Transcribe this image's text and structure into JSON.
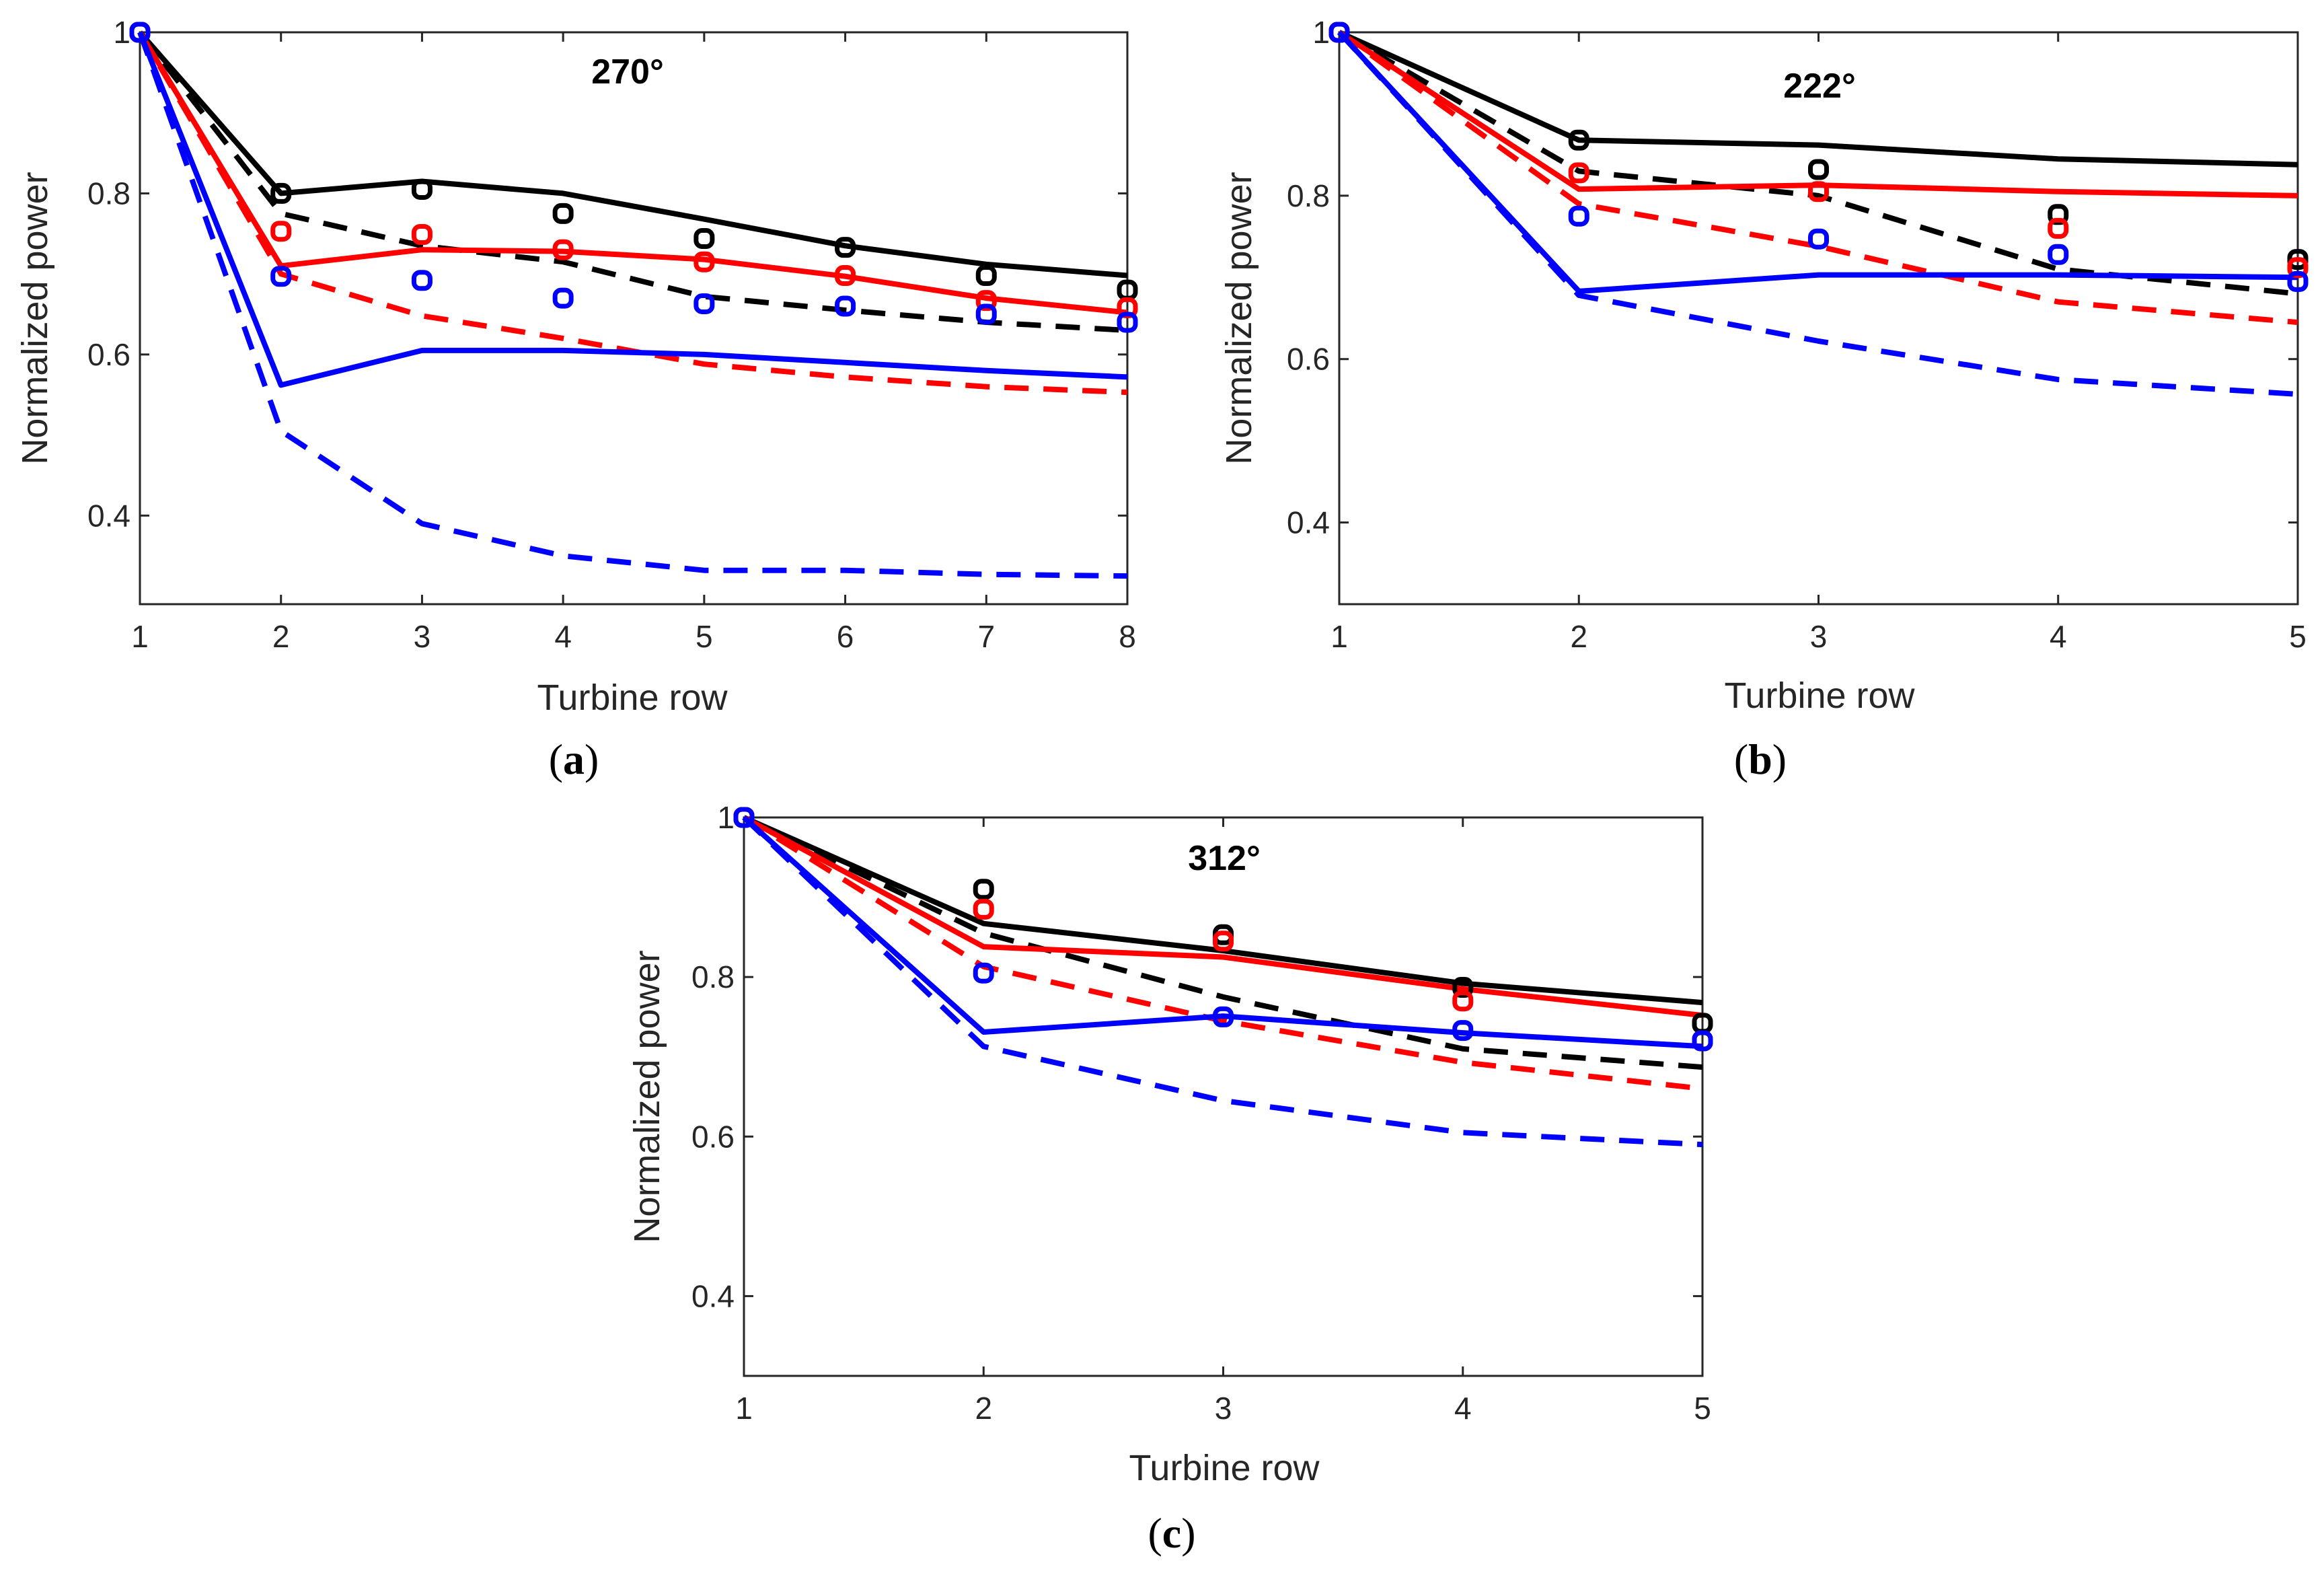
{
  "colors": {
    "exp": "#000000",
    "red": "#ff0000",
    "blue": "#0000ff"
  },
  "chart_data": [
    {
      "type": "line",
      "id": "a",
      "caption_open": "(",
      "caption_letter": "a",
      "caption_close": ")",
      "title": "270°",
      "xlabel": "Turbine row",
      "ylabel": "Normalized power",
      "xlim": [
        1,
        8
      ],
      "ylim": [
        0.29,
        1.0
      ],
      "xticks": [
        1,
        2,
        3,
        4,
        5,
        6,
        7,
        8
      ],
      "yticks": [
        0.4,
        0.6,
        0.8,
        1
      ],
      "ytick_labels": [
        "0.4",
        "0.6",
        "0.8",
        "1"
      ],
      "x": [
        1,
        2,
        3,
        4,
        5,
        6,
        7,
        8
      ],
      "series": [
        {
          "name": "black-solid",
          "color": "#000000",
          "style": "solid",
          "values": [
            1.0,
            0.8,
            0.815,
            0.8,
            0.768,
            0.735,
            0.712,
            0.698
          ]
        },
        {
          "name": "black-dashed",
          "color": "#000000",
          "style": "dashed",
          "values": [
            1.0,
            0.775,
            0.735,
            0.715,
            0.672,
            0.655,
            0.64,
            0.63
          ]
        },
        {
          "name": "red-solid",
          "color": "#ff0000",
          "style": "solid",
          "values": [
            1.0,
            0.71,
            0.73,
            0.728,
            0.718,
            0.697,
            0.67,
            0.652
          ]
        },
        {
          "name": "red-dashed",
          "color": "#ff0000",
          "style": "dashed",
          "values": [
            1.0,
            0.7,
            0.648,
            0.62,
            0.588,
            0.572,
            0.56,
            0.553
          ]
        },
        {
          "name": "blue-solid",
          "color": "#0000ff",
          "style": "solid",
          "values": [
            1.0,
            0.562,
            0.605,
            0.605,
            0.6,
            0.59,
            0.58,
            0.572
          ]
        },
        {
          "name": "blue-dashed",
          "color": "#0000ff",
          "style": "dashed",
          "values": [
            1.0,
            0.505,
            0.39,
            0.35,
            0.332,
            0.332,
            0.327,
            0.325
          ]
        },
        {
          "name": "black-markers",
          "color": "#000000",
          "style": "markers",
          "values": [
            1.0,
            0.8,
            0.805,
            0.775,
            0.744,
            0.733,
            0.698,
            0.68
          ]
        },
        {
          "name": "red-markers",
          "color": "#ff0000",
          "style": "markers",
          "values": [
            1.0,
            0.753,
            0.749,
            0.73,
            0.715,
            0.698,
            0.667,
            0.658
          ]
        },
        {
          "name": "blue-markers",
          "color": "#0000ff",
          "style": "markers",
          "values": [
            1.0,
            0.697,
            0.692,
            0.67,
            0.663,
            0.66,
            0.65,
            0.64
          ]
        }
      ]
    },
    {
      "type": "line",
      "id": "b",
      "caption_open": "(",
      "caption_letter": "b",
      "caption_close": ")",
      "title": "222°",
      "xlabel": "Turbine row",
      "ylabel": "Normalized power",
      "xlim": [
        1,
        5
      ],
      "ylim": [
        0.3,
        1.0
      ],
      "xticks": [
        1,
        2,
        3,
        4,
        5
      ],
      "yticks": [
        0.4,
        0.6,
        0.8,
        1
      ],
      "ytick_labels": [
        "0.4",
        "0.6",
        "0.8",
        "1"
      ],
      "x": [
        1,
        2,
        3,
        4,
        5
      ],
      "series": [
        {
          "name": "black-solid",
          "color": "#000000",
          "style": "solid",
          "values": [
            1.0,
            0.868,
            0.862,
            0.845,
            0.838
          ]
        },
        {
          "name": "black-dashed",
          "color": "#000000",
          "style": "dashed",
          "values": [
            1.0,
            0.83,
            0.8,
            0.71,
            0.68
          ]
        },
        {
          "name": "red-solid",
          "color": "#ff0000",
          "style": "solid",
          "values": [
            1.0,
            0.808,
            0.813,
            0.805,
            0.8
          ]
        },
        {
          "name": "red-dashed",
          "color": "#ff0000",
          "style": "dashed",
          "values": [
            1.0,
            0.79,
            0.738,
            0.67,
            0.645
          ]
        },
        {
          "name": "blue-solid",
          "color": "#0000ff",
          "style": "solid",
          "values": [
            1.0,
            0.683,
            0.703,
            0.703,
            0.7
          ]
        },
        {
          "name": "blue-dashed",
          "color": "#0000ff",
          "style": "dashed",
          "values": [
            1.0,
            0.678,
            0.622,
            0.575,
            0.557
          ]
        },
        {
          "name": "black-markers",
          "color": "#000000",
          "style": "markers",
          "values": [
            1.0,
            0.868,
            0.832,
            0.777,
            0.722
          ]
        },
        {
          "name": "red-markers",
          "color": "#ff0000",
          "style": "markers",
          "values": [
            1.0,
            0.828,
            0.805,
            0.76,
            0.712
          ]
        },
        {
          "name": "blue-markers",
          "color": "#0000ff",
          "style": "markers",
          "values": [
            1.0,
            0.775,
            0.747,
            0.728,
            0.695
          ]
        }
      ]
    },
    {
      "type": "line",
      "id": "c",
      "caption_open": "(",
      "caption_letter": "c",
      "caption_close": ")",
      "title": "312°",
      "xlabel": "Turbine row",
      "ylabel": "Normalized power",
      "xlim": [
        1,
        5
      ],
      "ylim": [
        0.3,
        1.0
      ],
      "xticks": [
        1,
        2,
        3,
        4,
        5
      ],
      "yticks": [
        0.4,
        0.6,
        0.8,
        1
      ],
      "ytick_labels": [
        "0.4",
        "0.6",
        "0.8",
        "1"
      ],
      "x": [
        1,
        2,
        3,
        4,
        5
      ],
      "series": [
        {
          "name": "black-solid",
          "color": "#000000",
          "style": "solid",
          "values": [
            1.0,
            0.867,
            0.833,
            0.792,
            0.768
          ]
        },
        {
          "name": "black-dashed",
          "color": "#000000",
          "style": "dashed",
          "values": [
            1.0,
            0.855,
            0.775,
            0.71,
            0.687
          ]
        },
        {
          "name": "red-solid",
          "color": "#ff0000",
          "style": "solid",
          "values": [
            1.0,
            0.838,
            0.825,
            0.785,
            0.752
          ]
        },
        {
          "name": "red-dashed",
          "color": "#ff0000",
          "style": "dashed",
          "values": [
            1.0,
            0.813,
            0.745,
            0.693,
            0.66
          ]
        },
        {
          "name": "blue-solid",
          "color": "#0000ff",
          "style": "solid",
          "values": [
            1.0,
            0.731,
            0.751,
            0.73,
            0.713
          ]
        },
        {
          "name": "blue-dashed",
          "color": "#0000ff",
          "style": "dashed",
          "values": [
            1.0,
            0.713,
            0.645,
            0.605,
            0.59
          ]
        },
        {
          "name": "black-markers",
          "color": "#000000",
          "style": "markers",
          "values": [
            1.0,
            0.91,
            0.853,
            0.787,
            0.742
          ]
        },
        {
          "name": "red-markers",
          "color": "#ff0000",
          "style": "markers",
          "values": [
            1.0,
            0.885,
            0.845,
            0.77,
            0.72
          ]
        },
        {
          "name": "blue-markers",
          "color": "#0000ff",
          "style": "markers",
          "values": [
            1.0,
            0.805,
            0.75,
            0.733,
            0.72
          ]
        }
      ]
    }
  ]
}
